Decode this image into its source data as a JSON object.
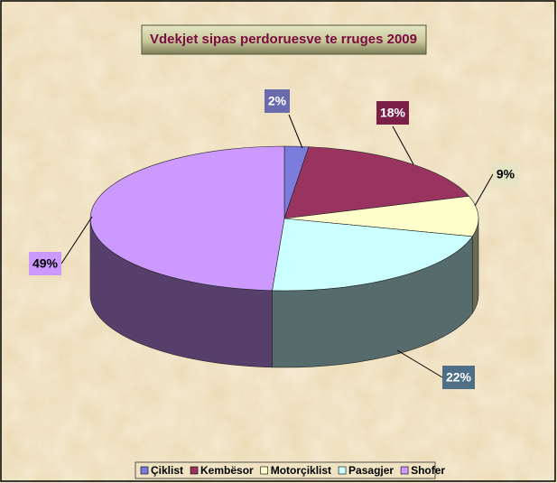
{
  "chart_data": {
    "type": "pie3d",
    "title": "Vdekjet sipas perdoruesve te rruges 2009",
    "categories": [
      "Çiklist",
      "Kembësor",
      "Motorçiklist",
      "Pasagjer",
      "Shofer"
    ],
    "values": [
      2,
      18,
      9,
      22,
      49
    ],
    "value_labels": [
      "2%",
      "18%",
      "9%",
      "22%",
      "49%"
    ],
    "colors": [
      "#7b7bdc",
      "#99335f",
      "#ffffcc",
      "#ccffff",
      "#cc99ff"
    ],
    "legend": "bottom"
  }
}
